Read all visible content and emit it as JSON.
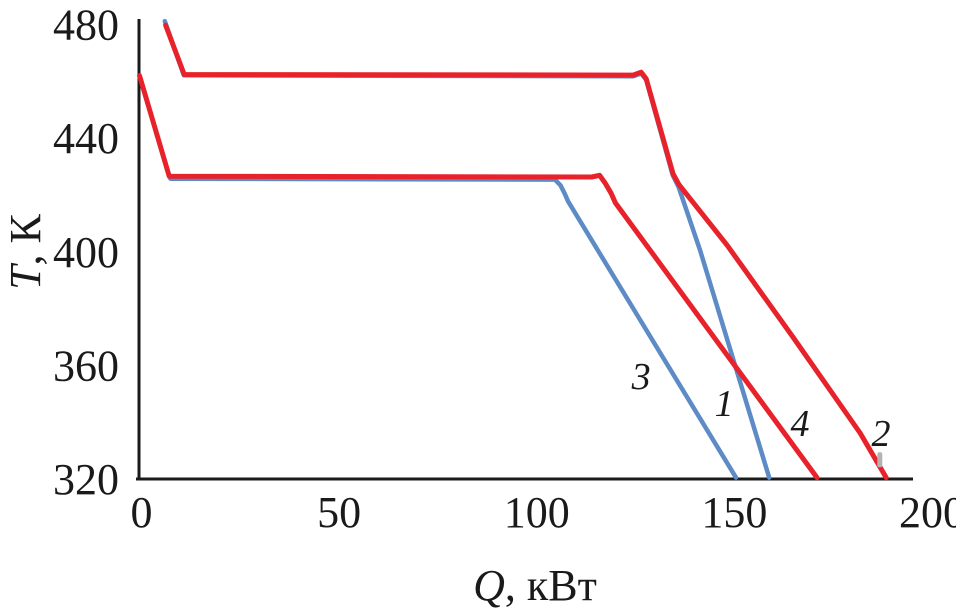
{
  "figure": {
    "background": "#ffffff",
    "axis_color": "#1a1a1a",
    "text_color": "#1a1a1a"
  },
  "chart_data": {
    "type": "line",
    "title": "",
    "xlabel_var": "Q",
    "xlabel_rest": ", кВт",
    "ylabel_var": "T",
    "ylabel_rest": ", К",
    "xlim": [
      0,
      200
    ],
    "ylim": [
      320,
      480
    ],
    "x_ticks": [
      "0",
      "50",
      "100",
      "150",
      "200"
    ],
    "x_tick_values": [
      0,
      50,
      100,
      150,
      200
    ],
    "y_ticks": [
      "320",
      "360",
      "400",
      "440",
      "480"
    ],
    "y_tick_values": [
      320,
      360,
      400,
      440,
      480
    ],
    "grid": false,
    "legend_position": "none (inline italic curve numbers)",
    "units": {
      "x": "kW",
      "y": "K"
    },
    "series": [
      {
        "name": "1",
        "color": "#5d8bc6",
        "width": 4.5,
        "comment": "blue; overlaps curve 2 along the 462 K plateau, then drops steeply",
        "points": [
          [
            5.9,
            481.2
          ],
          [
            10.7,
            462.1
          ],
          [
            124.4,
            461.8
          ],
          [
            126.4,
            462.8
          ],
          [
            127.7,
            460.5
          ],
          [
            134.4,
            427.0
          ],
          [
            135.9,
            422.8
          ],
          [
            141.3,
            400.6
          ],
          [
            158.8,
            320.5
          ]
        ]
      },
      {
        "name": "3",
        "color": "#5d8bc6",
        "width": 4.5,
        "comment": "blue; plateau at ~425.5 K under curve 4, leaves plateau at Q≈105",
        "points": [
          [
            7.3,
            425.7
          ],
          [
            104.6,
            425.4
          ],
          [
            106.0,
            423.4
          ],
          [
            107.1,
            420.4
          ],
          [
            107.9,
            417.8
          ],
          [
            150.4,
            320.5
          ]
        ]
      },
      {
        "name": "2",
        "color": "#e8222a",
        "width": 5,
        "comment": "red; starts (≈6, 480), plateau at ≈462 K to Q≈126, ends at (≈188, 320)",
        "points": [
          [
            6.1,
            479.8
          ],
          [
            10.8,
            462.4
          ],
          [
            124.4,
            462.2
          ],
          [
            126.4,
            463.2
          ],
          [
            127.7,
            460.9
          ],
          [
            134.5,
            427.4
          ],
          [
            136.0,
            423.6
          ],
          [
            148.1,
            402.4
          ],
          [
            164.8,
            370.0
          ],
          [
            181.8,
            336.2
          ],
          [
            188.4,
            320.5
          ]
        ]
      },
      {
        "name": "4",
        "color": "#e8222a",
        "width": 5,
        "comment": "red; starts (0, 462), plateau at ≈426 K to Q≈116, ends at (≈171, 320)",
        "points": [
          [
            -0.5,
            462.0
          ],
          [
            7.0,
            426.6
          ],
          [
            113.9,
            426.3
          ],
          [
            115.9,
            426.9
          ],
          [
            117.3,
            424.2
          ],
          [
            118.8,
            420.6
          ],
          [
            119.9,
            417.2
          ],
          [
            170.9,
            320.5
          ]
        ]
      }
    ],
    "curve_labels": [
      {
        "text": "3",
        "q": 126.4,
        "t": 356.2
      },
      {
        "text": "1",
        "q": 147.4,
        "t": 346.7
      },
      {
        "text": "4",
        "q": 166.6,
        "t": 339.7
      },
      {
        "text": "2",
        "q": 187.1,
        "t": 336.2
      }
    ],
    "artifact_mark": {
      "q": 186.8,
      "t": 326.8,
      "color": "#b3b3b3"
    }
  }
}
